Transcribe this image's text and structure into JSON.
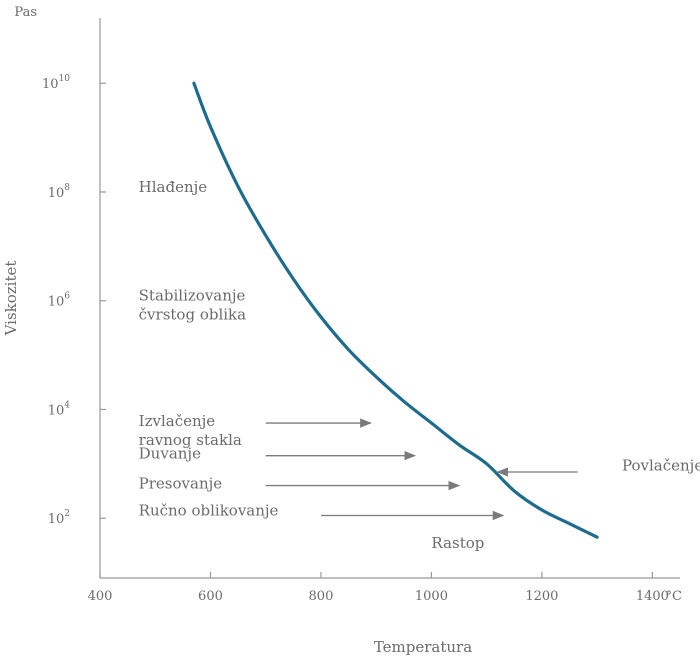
{
  "chart_data": {
    "type": "line",
    "title": "",
    "xlabel": "Temperatura",
    "ylabel": "Viskozitet",
    "x_unit": "°C",
    "y_unit": "Pas",
    "y_scale": "log",
    "xlim": [
      400,
      1450
    ],
    "ylim_exp": [
      0.9,
      11.2
    ],
    "x_ticks": [
      400,
      600,
      800,
      1000,
      1200,
      1400
    ],
    "x_tick_labels": [
      "400",
      "600",
      "800",
      "1000",
      "1200",
      "1400"
    ],
    "y_ticks_exp": [
      2,
      4,
      6,
      8,
      10
    ],
    "y_tick_labels": [
      {
        "base": "10",
        "exp": "2"
      },
      {
        "base": "10",
        "exp": "4"
      },
      {
        "base": "10",
        "exp": "6"
      },
      {
        "base": "10",
        "exp": "8"
      },
      {
        "base": "10",
        "exp": "10"
      }
    ],
    "grid": false,
    "series": [
      {
        "color": "#1d6c8e",
        "x": [
          570,
          600,
          650,
          700,
          750,
          800,
          850,
          900,
          950,
          1000,
          1050,
          1100,
          1150,
          1200,
          1250,
          1300
        ],
        "log10_y": [
          10.0,
          9.2,
          8.1,
          7.2,
          6.4,
          5.7,
          5.1,
          4.6,
          4.15,
          3.75,
          3.35,
          3.0,
          2.5,
          2.15,
          1.9,
          1.65
        ]
      }
    ],
    "region_labels": [
      {
        "lines": [
          "Hlađenje"
        ],
        "x": 470,
        "log10_y": 8
      },
      {
        "lines": [
          "Stabilizovanje",
          "čvrstog oblika"
        ],
        "x": 470,
        "log10_y": 6
      },
      {
        "lines": [
          "Izvlačenje",
          "ravnog stakla"
        ],
        "x": 470,
        "log10_y": 3.7
      },
      {
        "lines": [
          "Duvanje"
        ],
        "x": 470,
        "log10_y": 3.1
      },
      {
        "lines": [
          "Presovanje"
        ],
        "x": 470,
        "log10_y": 2.55
      },
      {
        "lines": [
          "Ručno oblikovanje"
        ],
        "x": 470,
        "log10_y": 2.05
      },
      {
        "lines": [
          "Rastop"
        ],
        "x": 1000,
        "log10_y": 1.45
      },
      {
        "lines": [
          "Povlačenje cevi"
        ],
        "x": 1345,
        "log10_y": 2.88
      }
    ],
    "arrows": [
      {
        "name": "arrow-izvlacenje",
        "x_from": 700,
        "x_to": 890,
        "log10_y": 3.75
      },
      {
        "name": "arrow-duvanje",
        "x_from": 700,
        "x_to": 970,
        "log10_y": 3.15
      },
      {
        "name": "arrow-presovanje",
        "x_from": 700,
        "x_to": 1050,
        "log10_y": 2.6
      },
      {
        "name": "arrow-rucno",
        "x_from": 800,
        "x_to": 1130,
        "log10_y": 2.05
      },
      {
        "name": "arrow-povlacenje",
        "x_from": 1265,
        "x_to": 1120,
        "log10_y": 2.85
      }
    ]
  }
}
